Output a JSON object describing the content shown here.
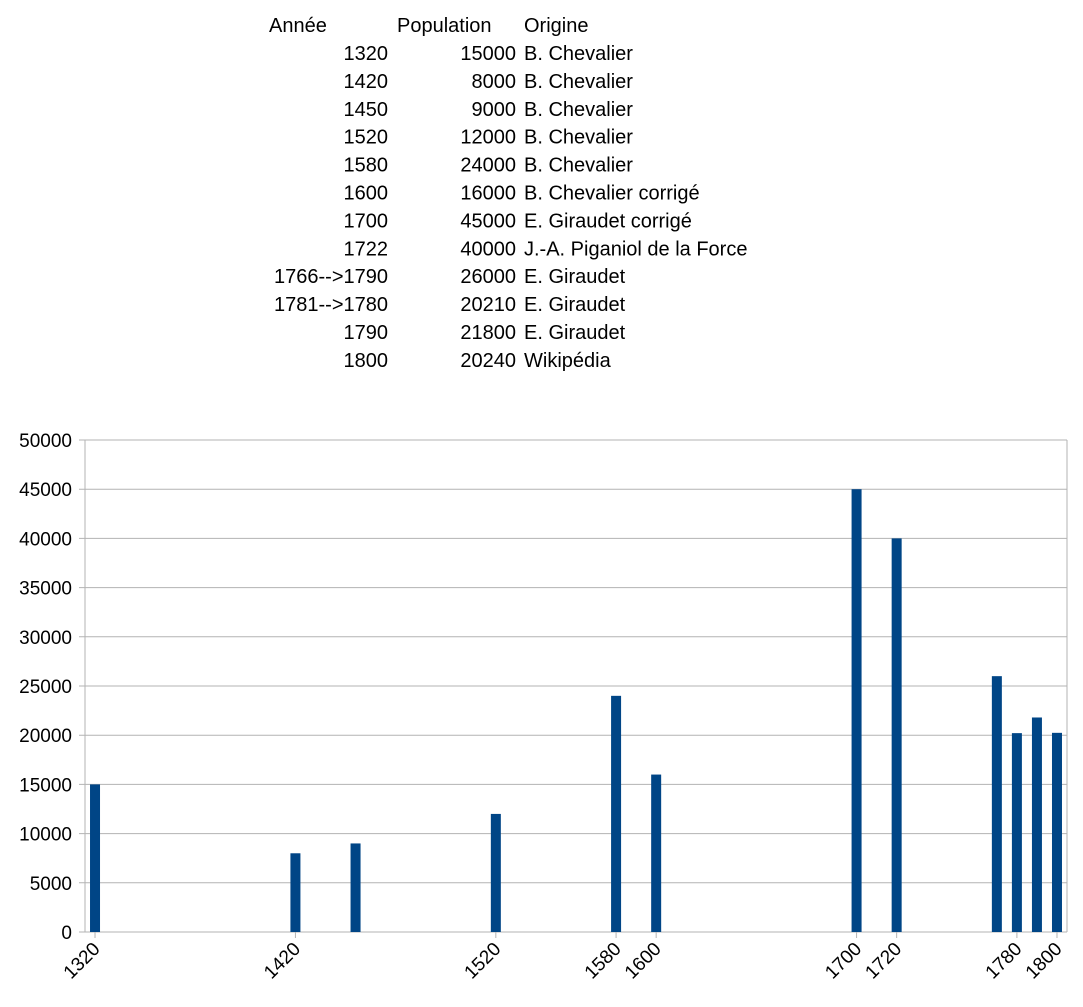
{
  "table": {
    "header": [
      "Année",
      "Population",
      "Origine"
    ],
    "rows": [
      [
        "1320",
        15000,
        "B. Chevalier"
      ],
      [
        "1420",
        8000,
        "B. Chevalier"
      ],
      [
        "1450",
        9000,
        "B. Chevalier"
      ],
      [
        "1520",
        12000,
        "B. Chevalier"
      ],
      [
        "1580",
        24000,
        "B. Chevalier"
      ],
      [
        "1600",
        16000,
        "B. Chevalier corrigé"
      ],
      [
        "1700",
        45000,
        "E. Giraudet corrigé"
      ],
      [
        "1722",
        40000,
        "J.-A. Piganiol de la Force"
      ],
      [
        "1766-->1790",
        26000,
        "E. Giraudet"
      ],
      [
        "1781-->1780",
        20210,
        "E. Giraudet"
      ],
      [
        "1790",
        21800,
        "E. Giraudet"
      ],
      [
        "1800",
        20240,
        "Wikipédia"
      ]
    ]
  },
  "chart_data": {
    "type": "bar",
    "x": [
      1320,
      1420,
      1450,
      1520,
      1580,
      1600,
      1700,
      1720,
      1770,
      1780,
      1790,
      1800
    ],
    "values": [
      15000,
      8000,
      9000,
      12000,
      24000,
      16000,
      45000,
      40000,
      26000,
      20210,
      21800,
      20240
    ],
    "color": "#004586",
    "xlim": [
      1315,
      1805
    ],
    "xticks": [
      1320,
      1420,
      1520,
      1580,
      1600,
      1700,
      1720,
      1780,
      1800
    ],
    "ylim": [
      0,
      50000
    ],
    "yticks": [
      0,
      5000,
      10000,
      15000,
      20000,
      25000,
      30000,
      35000,
      40000,
      45000,
      50000
    ],
    "grid": true
  }
}
